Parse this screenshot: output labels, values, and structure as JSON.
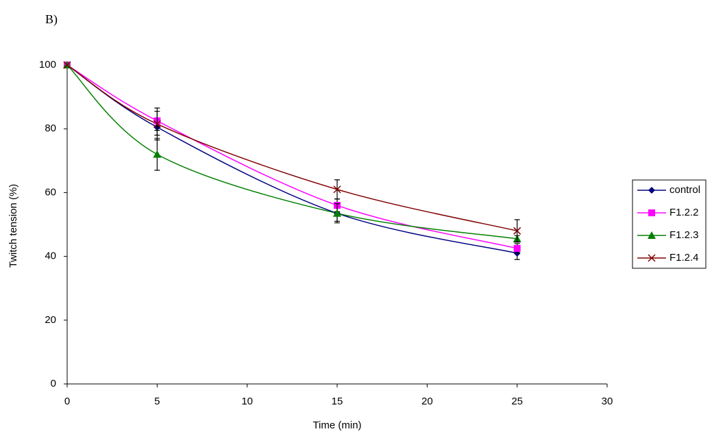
{
  "chart_data": {
    "type": "line",
    "label": "B)",
    "x_label": "Time (min)",
    "y_label": "Twitch tension (%)",
    "x": [
      0,
      5,
      15,
      25
    ],
    "series": [
      {
        "name": "control",
        "color": "#000080",
        "marker": "diamond",
        "values": [
          100,
          80.5,
          53.5,
          41
        ],
        "errors": [
          0,
          2.5,
          2.5,
          2
        ]
      },
      {
        "name": "F1.2.2",
        "color": "#ff00ff",
        "marker": "square",
        "values": [
          100,
          82.5,
          56,
          42.5
        ],
        "errors": [
          0,
          3,
          2,
          1.5
        ]
      },
      {
        "name": "F1.2.3",
        "color": "#008000",
        "marker": "triangle",
        "values": [
          100,
          72,
          53.5,
          45.5
        ],
        "errors": [
          0,
          5,
          3,
          1
        ]
      },
      {
        "name": "F1.2.4",
        "color": "#800000",
        "marker": "x",
        "values": [
          100,
          81.5,
          61,
          48
        ],
        "errors": [
          0,
          5,
          3,
          3.5
        ]
      }
    ],
    "xlim": [
      0,
      30
    ],
    "xticks": [
      0,
      5,
      10,
      15,
      20,
      25,
      30
    ],
    "ylim": [
      0,
      100
    ],
    "yticks": [
      0,
      20,
      40,
      60,
      80,
      100
    ],
    "smooth": true,
    "legend": "right"
  }
}
